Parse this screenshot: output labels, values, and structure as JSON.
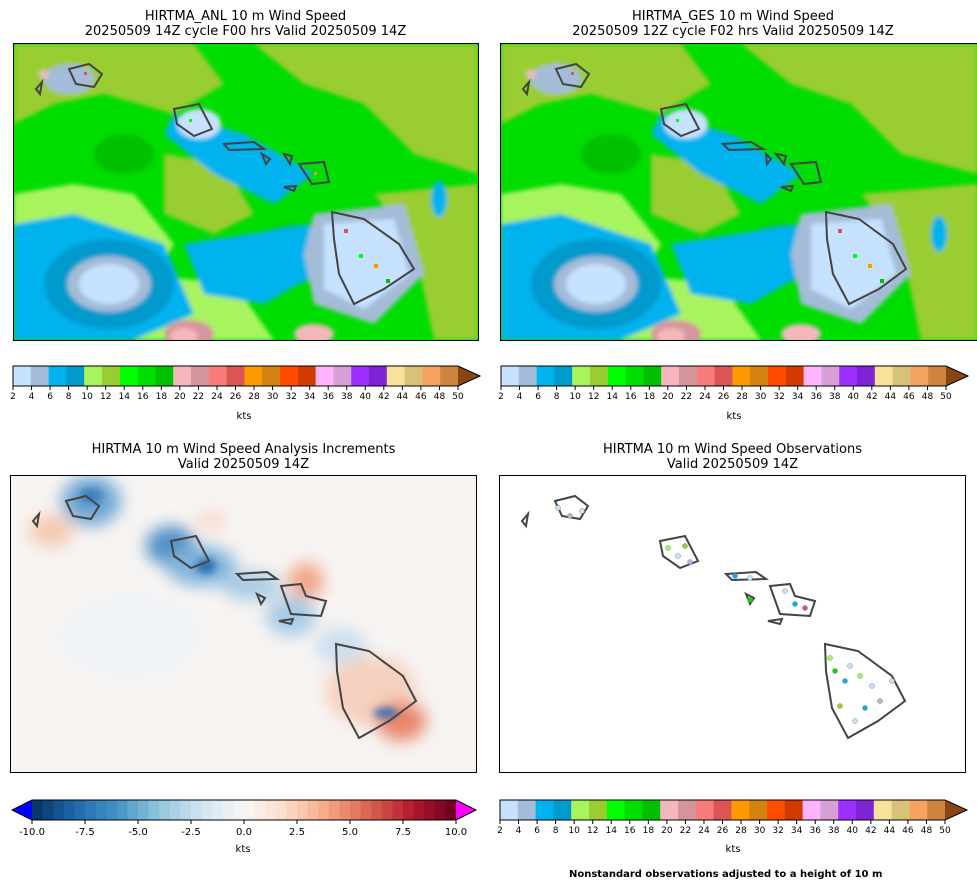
{
  "panels": {
    "anl": {
      "title_line1": "HIRTMA_ANL 10 m Wind Speed",
      "title_line2": "20250509 14Z cycle F00 hrs Valid 20250509 14Z"
    },
    "ges": {
      "title_line1": "HIRTMA_GES 10 m Wind Speed",
      "title_line2": "20250509 12Z cycle F02 hrs Valid 20250509 14Z"
    },
    "inc": {
      "title_line1": "HIRTMA 10 m Wind Speed Analysis Increments",
      "title_line2": "Valid 20250509 14Z"
    },
    "obs": {
      "title_line1": "HIRTMA 10 m Wind Speed Observations",
      "title_line2": "Valid 20250509 14Z"
    }
  },
  "note": "Nonstandard observations adjusted to a height of 10 m",
  "chart_data": [
    {
      "type": "heatmap",
      "name": "anl",
      "title": "HIRTMA_ANL 10 m Wind Speed",
      "colorbar": {
        "label": "kts",
        "ticks": [
          2,
          4,
          6,
          8,
          10,
          12,
          14,
          16,
          18,
          20,
          22,
          24,
          26,
          28,
          30,
          32,
          34,
          36,
          38,
          40,
          42,
          44,
          46,
          48,
          50
        ],
        "colors": [
          "#c6e2ff",
          "#a4bcd8",
          "#00b2ee",
          "#009acd",
          "#a8f45f",
          "#9acd32",
          "#00ff00",
          "#00dd00",
          "#00c000",
          "#f4b8bc",
          "#d5959c",
          "#f77b7b",
          "#dc5454",
          "#ff9900",
          "#d28210",
          "#ff4c00",
          "#d23a00",
          "#ffb3ff",
          "#d79fd8",
          "#9b30ff",
          "#7f24d4",
          "#f7e29b",
          "#d8c27a",
          "#f4a460",
          "#cd853f"
        ],
        "extend": "max",
        "extend_color": "#8b4513"
      }
    },
    {
      "type": "heatmap",
      "name": "ges",
      "title": "HIRTMA_GES 10 m Wind Speed",
      "colorbar": {
        "label": "kts",
        "ticks": [
          2,
          4,
          6,
          8,
          10,
          12,
          14,
          16,
          18,
          20,
          22,
          24,
          26,
          28,
          30,
          32,
          34,
          36,
          38,
          40,
          42,
          44,
          46,
          48,
          50
        ],
        "colors": [
          "#c6e2ff",
          "#a4bcd8",
          "#00b2ee",
          "#009acd",
          "#a8f45f",
          "#9acd32",
          "#00ff00",
          "#00dd00",
          "#00c000",
          "#f4b8bc",
          "#d5959c",
          "#f77b7b",
          "#dc5454",
          "#ff9900",
          "#d28210",
          "#ff4c00",
          "#d23a00",
          "#ffb3ff",
          "#d79fd8",
          "#9b30ff",
          "#7f24d4",
          "#f7e29b",
          "#d8c27a",
          "#f4a460",
          "#cd853f"
        ],
        "extend": "max",
        "extend_color": "#8b4513"
      }
    },
    {
      "type": "heatmap",
      "name": "inc",
      "title": "HIRTMA 10 m Wind Speed Analysis Increments",
      "colorbar": {
        "label": "kts",
        "ticks": [
          -10.0,
          -7.5,
          -5.0,
          -2.5,
          0.0,
          2.5,
          5.0,
          7.5,
          10.0
        ],
        "tick_labels": [
          "-10.0",
          "-7.5",
          "-5.0",
          "-2.5",
          "0.0",
          "2.5",
          "5.0",
          "7.5",
          "10.0"
        ],
        "range": [
          -10,
          10
        ],
        "colormap": "RdBu_r",
        "extend": "both",
        "extend_min_color": "#0000ff",
        "extend_max_color": "#ff00ff"
      }
    },
    {
      "type": "scatter",
      "name": "obs",
      "title": "HIRTMA 10 m Wind Speed Observations",
      "colorbar": {
        "label": "kts",
        "ticks": [
          2,
          4,
          6,
          8,
          10,
          12,
          14,
          16,
          18,
          20,
          22,
          24,
          26,
          28,
          30,
          32,
          34,
          36,
          38,
          40,
          42,
          44,
          46,
          48,
          50
        ],
        "colors": [
          "#c6e2ff",
          "#a4bcd8",
          "#00b2ee",
          "#009acd",
          "#a8f45f",
          "#9acd32",
          "#00ff00",
          "#00dd00",
          "#00c000",
          "#f4b8bc",
          "#d5959c",
          "#f77b7b",
          "#dc5454",
          "#ff9900",
          "#d28210",
          "#ff4c00",
          "#d23a00",
          "#ffb3ff",
          "#d79fd8",
          "#9b30ff",
          "#7f24d4",
          "#f7e29b",
          "#d8c27a",
          "#f4a460",
          "#cd853f"
        ],
        "extend": "max",
        "extend_color": "#8b4513"
      }
    }
  ]
}
